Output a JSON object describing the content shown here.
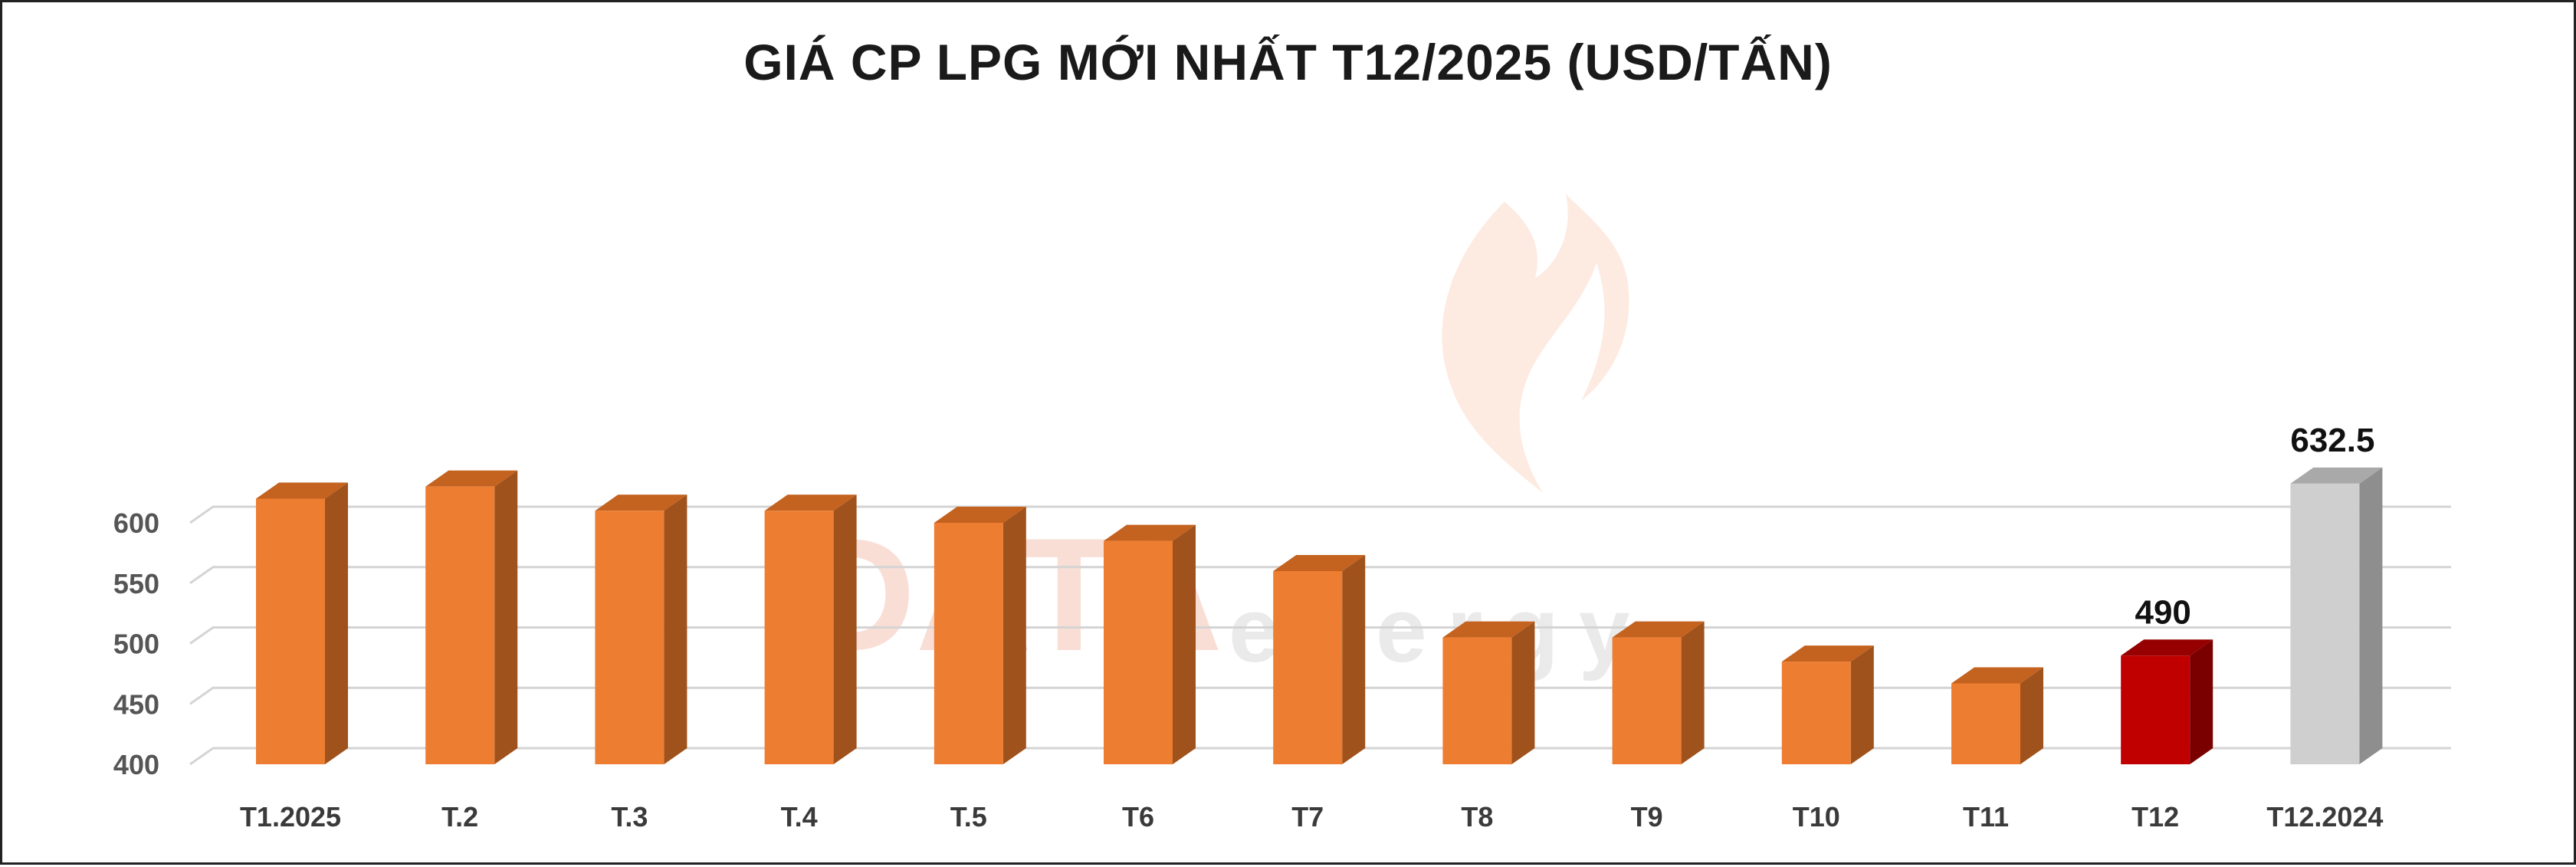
{
  "chart_data": {
    "type": "bar",
    "title": "GIÁ CP LPG MỚI NHẤT T12/2025 (USD/TẤN)",
    "categories": [
      "T1.2025",
      "T.2",
      "T.3",
      "T.4",
      "T.5",
      "T6",
      "T7",
      "T8",
      "T9",
      "T10",
      "T11",
      "T12",
      "T12.2024"
    ],
    "values": [
      620,
      630,
      610,
      610,
      600,
      585,
      560,
      505,
      505,
      485,
      467,
      490,
      632.5
    ],
    "data_labels": {
      "11": "490",
      "12": "632.5"
    },
    "yticks": [
      400,
      450,
      500,
      550,
      600
    ],
    "ylim": [
      400,
      650
    ],
    "grid": true,
    "legend": "none",
    "colors": {
      "default": "#ed7d31",
      "default_side": "#a0521c",
      "default_top": "#c4621f",
      "highlight": "#c00000",
      "highlight_side": "#7a0000",
      "highlight_top": "#960000",
      "reference": "#cfcfcf",
      "reference_side": "#8e8e8e",
      "reference_top": "#a9a9a9"
    },
    "bar_styles": [
      "default",
      "default",
      "default",
      "default",
      "default",
      "default",
      "default",
      "default",
      "default",
      "default",
      "default",
      "highlight",
      "reference"
    ]
  },
  "watermark": {
    "main": "DATA",
    "sub": "energy"
  }
}
